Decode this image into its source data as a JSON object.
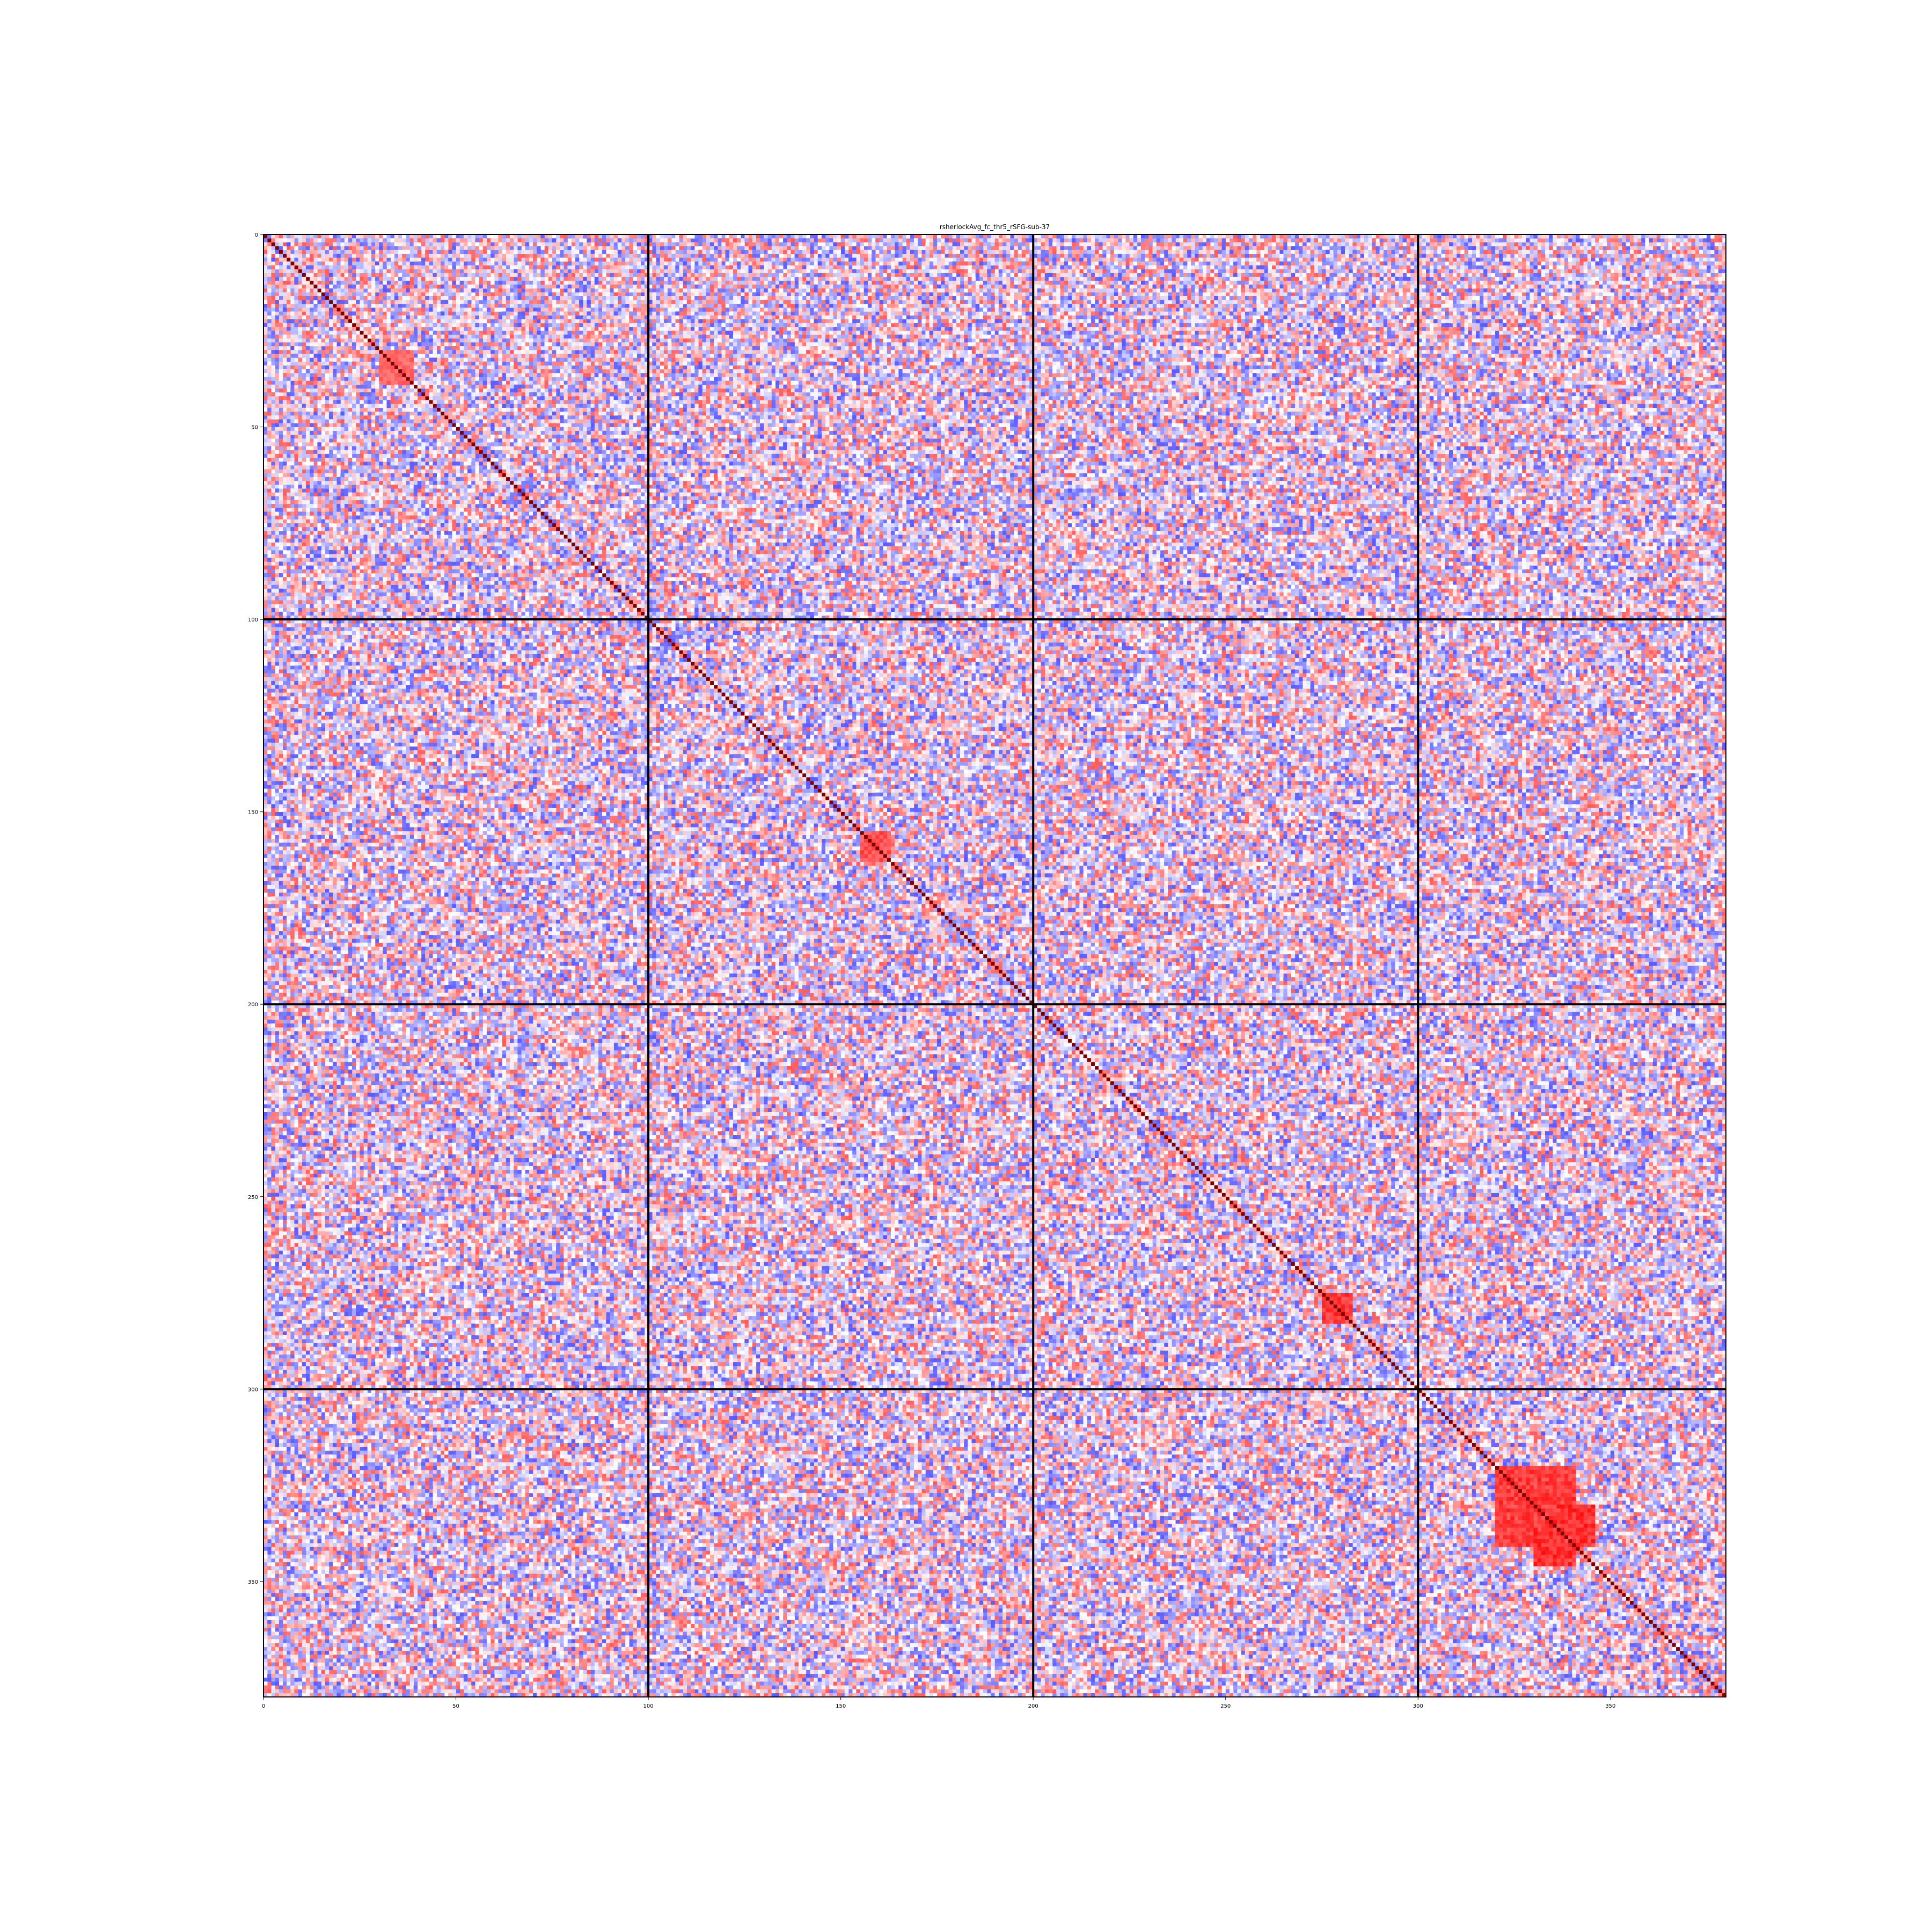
{
  "chart_data": {
    "type": "heatmap",
    "title": "rsherlockAvg_fc_thr5_rSFG-sub-37",
    "xlabel": "",
    "ylabel": "",
    "matrix_size": 380,
    "xlim": [
      0,
      380
    ],
    "ylim": [
      380,
      0
    ],
    "x_ticks": [
      0,
      50,
      100,
      150,
      200,
      250,
      300,
      350
    ],
    "y_ticks": [
      0,
      50,
      100,
      150,
      200,
      250,
      300,
      350
    ],
    "block_boundaries": [
      100,
      200,
      300
    ],
    "colormap": "bwr",
    "value_range": [
      -1,
      1
    ],
    "diagonal_value": 1,
    "grid": false,
    "colors": {
      "negative": "#0000ff",
      "zero": "#ffffff",
      "positive": "#ff0000",
      "diagonal": "#800000",
      "block_lines": "#000000"
    },
    "notable_clusters": [
      {
        "rows": [
          320,
          340
        ],
        "cols": [
          320,
          340
        ],
        "value": 0.9
      },
      {
        "rows": [
          330,
          340
        ],
        "cols": [
          335,
          345
        ],
        "value": 0.95
      },
      {
        "rows": [
          275,
          282
        ],
        "cols": [
          275,
          282
        ],
        "value": 0.9
      },
      {
        "rows": [
          155,
          162
        ],
        "cols": [
          155,
          162
        ],
        "value": 0.8
      },
      {
        "rows": [
          30,
          38
        ],
        "cols": [
          30,
          38
        ],
        "value": 0.7
      }
    ]
  }
}
